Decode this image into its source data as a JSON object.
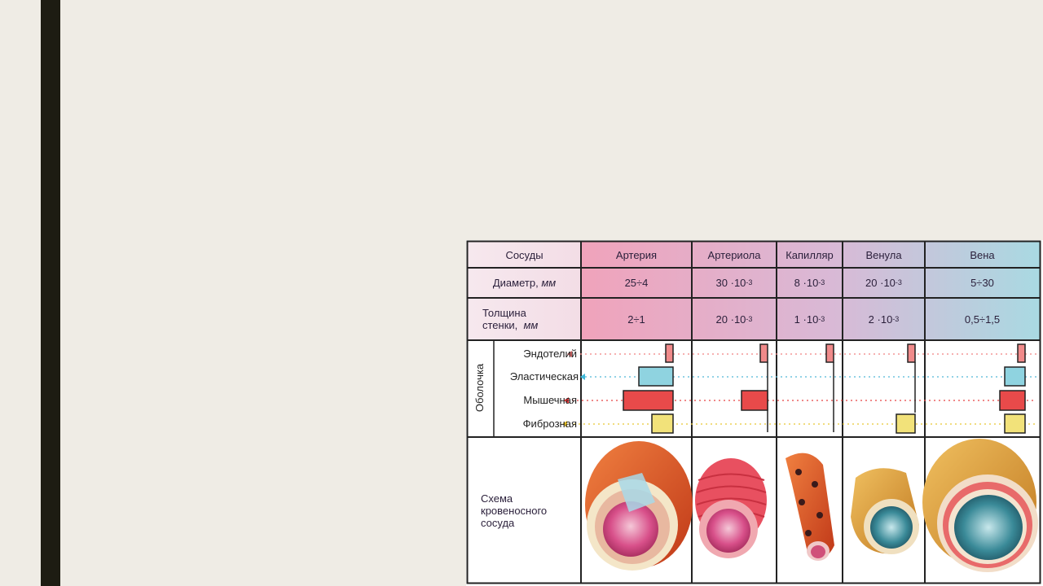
{
  "header": {
    "vessels_label": "Сосуды",
    "columns": [
      "Артерия",
      "Артериола",
      "Капилляр",
      "Венула",
      "Вена"
    ]
  },
  "diameter": {
    "label": "Диаметр,",
    "unit": "мм",
    "values": [
      "25÷4",
      "30 ·10",
      "8 ·10",
      "20 ·10",
      "5÷30"
    ],
    "exponents": [
      "",
      "-3",
      "-3",
      "-3",
      ""
    ]
  },
  "wall": {
    "label_line1": "Толщина",
    "label_line2": "стенки,",
    "unit": "мм",
    "values": [
      "2÷1",
      "20 ·10",
      "1 ·10",
      "2 ·10",
      "0,5÷1,5"
    ],
    "exponents": [
      "",
      "-3",
      "-3",
      "-3",
      ""
    ]
  },
  "layers": {
    "group_label": "Оболочка",
    "names": [
      "Эндотелий",
      "Эластическая",
      "Мышечная",
      "Фиброзная"
    ],
    "colors": [
      "#f08a8a",
      "#8fd3e0",
      "#e84a4a",
      "#f2e27a"
    ],
    "marker_colors": [
      "#f07070",
      "#40b8d8",
      "#e03030",
      "#e8c020"
    ]
  },
  "scheme": {
    "label_line1": "Схема",
    "label_line2": "кровеносного",
    "label_line3": "сосуда"
  },
  "colors": {
    "header_gradient_start": "#f0a0b8",
    "header_gradient_end": "#a8d8e0"
  }
}
